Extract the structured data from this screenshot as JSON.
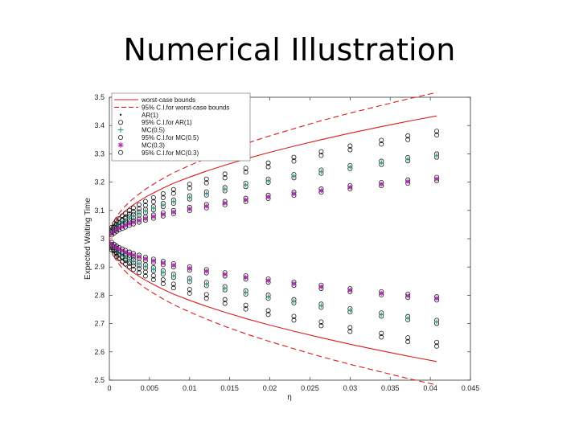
{
  "slide": {
    "title": "Numerical Illustration"
  },
  "chart_data": {
    "type": "scatter",
    "xlabel": "η",
    "ylabel": "Expected Waiting Time",
    "xlim": [
      0,
      0.045
    ],
    "ylim": [
      2.5,
      3.5
    ],
    "xticks": [
      0,
      0.005,
      0.01,
      0.015,
      0.02,
      0.025,
      0.03,
      0.035,
      0.04,
      0.045
    ],
    "xtick_labels": [
      "0",
      "0.005",
      "0.01",
      "0.015",
      "0.02",
      "0.025",
      "0.03",
      "0.035",
      "0.04",
      "0.045"
    ],
    "yticks": [
      2.5,
      2.6,
      2.7,
      2.8,
      2.9,
      3,
      3.1,
      3.2,
      3.3,
      3.4,
      3.5
    ],
    "ytick_labels": [
      "2.5",
      "2.6",
      "2.7",
      "2.8",
      "2.9",
      "3",
      "3.1",
      "3.2",
      "3.3",
      "3.4",
      "3.5"
    ],
    "grid": false,
    "legend_position": "top-left",
    "colors": {
      "bounds": "#d81e1e",
      "ar": "#1a1a1a",
      "mc05": "#2a9d8f",
      "mc03": "#b02cb0",
      "ci": "#1a1a1a"
    },
    "x": [
      0.0003,
      0.0006,
      0.0009,
      0.0012,
      0.0016,
      0.002,
      0.0025,
      0.003,
      0.0037,
      0.0045,
      0.0055,
      0.0067,
      0.008,
      0.01,
      0.0121,
      0.0144,
      0.017,
      0.0198,
      0.023,
      0.0264,
      0.03,
      0.0339,
      0.0372,
      0.0408
    ],
    "series": [
      {
        "name": "worst-case bounds",
        "style": "solid-line",
        "upper": [
          3.038,
          3.054,
          3.066,
          3.076,
          3.088,
          3.098,
          3.11,
          3.12,
          3.133,
          3.147,
          3.162,
          3.179,
          3.196,
          3.218,
          3.239,
          3.26,
          3.282,
          3.304,
          3.327,
          3.35,
          3.373,
          3.396,
          3.415,
          3.434
        ],
        "lower": [
          2.962,
          2.946,
          2.934,
          2.924,
          2.912,
          2.902,
          2.89,
          2.88,
          2.867,
          2.853,
          2.838,
          2.821,
          2.804,
          2.782,
          2.761,
          2.74,
          2.718,
          2.696,
          2.673,
          2.65,
          2.627,
          2.604,
          2.585,
          2.566
        ]
      },
      {
        "name": "95% C.I.for worst-case bounds",
        "style": "dashed-line",
        "upper": [
          3.045,
          3.064,
          3.078,
          3.09,
          3.104,
          3.116,
          3.13,
          3.142,
          3.158,
          3.175,
          3.193,
          3.213,
          3.233,
          3.259,
          3.284,
          3.31,
          3.336,
          3.362,
          3.389,
          3.417,
          3.444,
          3.471,
          3.494,
          3.517
        ],
        "lower": [
          2.955,
          2.936,
          2.922,
          2.91,
          2.896,
          2.884,
          2.87,
          2.858,
          2.842,
          2.825,
          2.807,
          2.787,
          2.767,
          2.741,
          2.716,
          2.69,
          2.664,
          2.638,
          2.611,
          2.583,
          2.556,
          2.529,
          2.506,
          2.483
        ]
      },
      {
        "name": "AR(1)",
        "marker": "dot",
        "upper": [
          3.033,
          3.046,
          3.056,
          3.064,
          3.074,
          3.083,
          3.093,
          3.102,
          3.113,
          3.125,
          3.138,
          3.152,
          3.167,
          3.186,
          3.204,
          3.222,
          3.242,
          3.261,
          3.281,
          3.301,
          3.321,
          3.341,
          3.357,
          3.373
        ],
        "lower": [
          2.967,
          2.954,
          2.944,
          2.936,
          2.926,
          2.917,
          2.907,
          2.898,
          2.887,
          2.875,
          2.862,
          2.848,
          2.833,
          2.814,
          2.796,
          2.778,
          2.758,
          2.739,
          2.719,
          2.699,
          2.679,
          2.659,
          2.643,
          2.627
        ]
      },
      {
        "name": "95% C.I.for AR(1)",
        "marker": "circle",
        "upper_offset": 0.007,
        "lower_offset": -0.007
      },
      {
        "name": "MC(0.5)",
        "marker": "plus",
        "upper": [
          3.026,
          3.036,
          3.044,
          3.051,
          3.058,
          3.065,
          3.073,
          3.08,
          3.089,
          3.098,
          3.108,
          3.119,
          3.131,
          3.146,
          3.16,
          3.175,
          3.19,
          3.205,
          3.221,
          3.237,
          3.253,
          3.268,
          3.281,
          3.294
        ],
        "lower": [
          2.974,
          2.964,
          2.956,
          2.949,
          2.942,
          2.935,
          2.927,
          2.92,
          2.911,
          2.902,
          2.892,
          2.881,
          2.869,
          2.854,
          2.84,
          2.825,
          2.81,
          2.795,
          2.779,
          2.763,
          2.747,
          2.732,
          2.719,
          2.706
        ]
      },
      {
        "name": "95% C.I.for MC(0.5)",
        "marker": "circle",
        "upper_offset": 0.006,
        "lower_offset": -0.006
      },
      {
        "name": "MC(0.3)",
        "marker": "asterisk",
        "upper": [
          3.019,
          3.026,
          3.032,
          3.037,
          3.042,
          3.047,
          3.053,
          3.058,
          3.064,
          3.071,
          3.078,
          3.086,
          3.094,
          3.105,
          3.115,
          3.126,
          3.137,
          3.148,
          3.159,
          3.17,
          3.182,
          3.193,
          3.202,
          3.211
        ],
        "lower": [
          2.981,
          2.974,
          2.968,
          2.963,
          2.958,
          2.953,
          2.947,
          2.942,
          2.936,
          2.929,
          2.922,
          2.914,
          2.906,
          2.895,
          2.885,
          2.874,
          2.863,
          2.852,
          2.841,
          2.83,
          2.818,
          2.807,
          2.798,
          2.789
        ]
      },
      {
        "name": "95% C.I.for MC(0.3)",
        "marker": "circle",
        "upper_offset": 0.006,
        "lower_offset": -0.006
      }
    ]
  }
}
